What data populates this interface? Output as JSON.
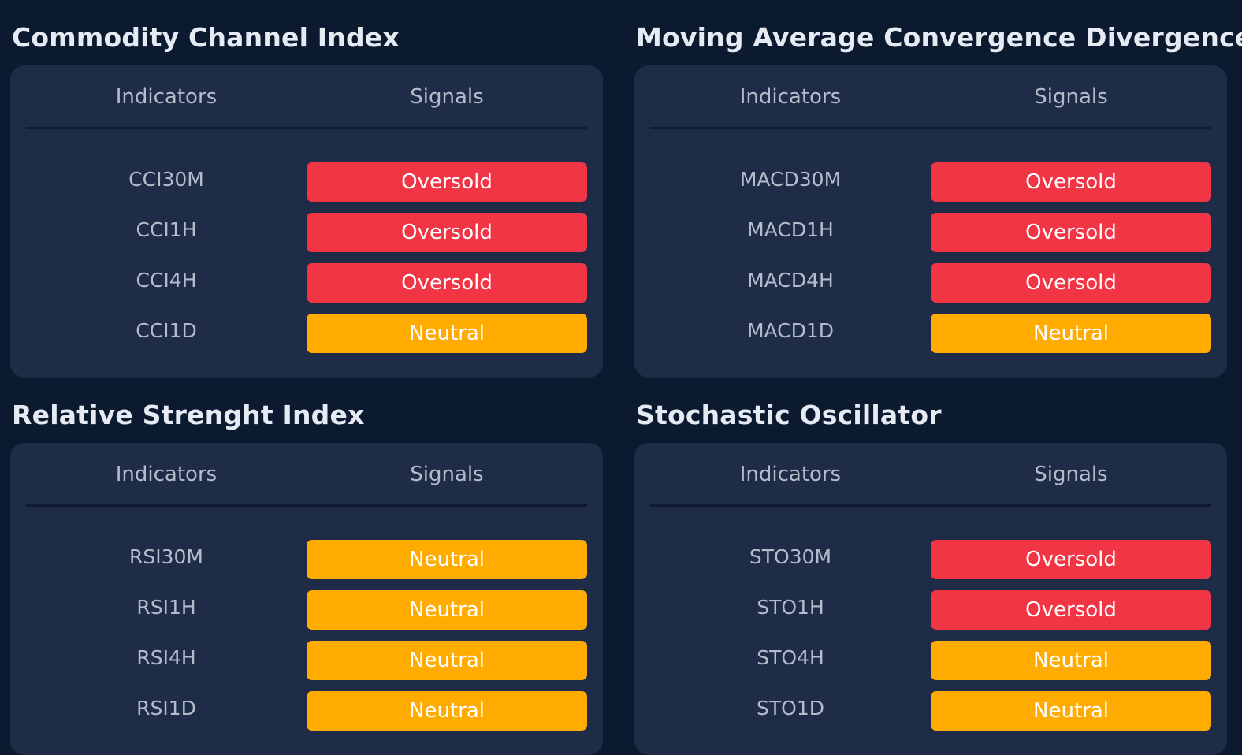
{
  "colors": {
    "background": "#0c1a30",
    "card": "#1e2c48",
    "oversold": "#f23545",
    "neutral": "#ffab00"
  },
  "sections": [
    {
      "title": "Commodity Channel Index",
      "header": {
        "indicators": "Indicators",
        "signals": "Signals"
      },
      "rows": [
        {
          "indicator": "CCI30M",
          "signal": "Oversold"
        },
        {
          "indicator": "CCI1H",
          "signal": "Oversold"
        },
        {
          "indicator": "CCI4H",
          "signal": "Oversold"
        },
        {
          "indicator": "CCI1D",
          "signal": "Neutral"
        }
      ]
    },
    {
      "title": "Moving Average Convergence Divergence",
      "header": {
        "indicators": "Indicators",
        "signals": "Signals"
      },
      "rows": [
        {
          "indicator": "MACD30M",
          "signal": "Oversold"
        },
        {
          "indicator": "MACD1H",
          "signal": "Oversold"
        },
        {
          "indicator": "MACD4H",
          "signal": "Oversold"
        },
        {
          "indicator": "MACD1D",
          "signal": "Neutral"
        }
      ]
    },
    {
      "title": "Relative Strenght Index",
      "header": {
        "indicators": "Indicators",
        "signals": "Signals"
      },
      "rows": [
        {
          "indicator": "RSI30M",
          "signal": "Neutral"
        },
        {
          "indicator": "RSI1H",
          "signal": "Neutral"
        },
        {
          "indicator": "RSI4H",
          "signal": "Neutral"
        },
        {
          "indicator": "RSI1D",
          "signal": "Neutral"
        }
      ]
    },
    {
      "title": "Stochastic Oscillator",
      "header": {
        "indicators": "Indicators",
        "signals": "Signals"
      },
      "rows": [
        {
          "indicator": "STO30M",
          "signal": "Oversold"
        },
        {
          "indicator": "STO1H",
          "signal": "Oversold"
        },
        {
          "indicator": "STO4H",
          "signal": "Neutral"
        },
        {
          "indicator": "STO1D",
          "signal": "Neutral"
        }
      ]
    }
  ]
}
